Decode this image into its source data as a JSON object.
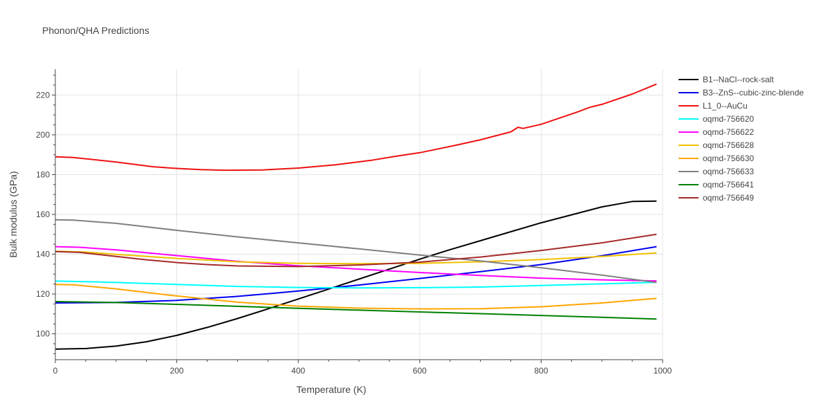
{
  "title": "Phonon/QHA Predictions",
  "chart_data": {
    "type": "line",
    "title": "Phonon/QHA Predictions",
    "xlabel": "Temperature (K)",
    "ylabel": "Bulk modulus (GPa)",
    "xlim": [
      0,
      1000
    ],
    "ylim": [
      87,
      233
    ],
    "x_ticks": [
      0,
      200,
      400,
      600,
      800,
      1000
    ],
    "y_ticks": [
      100,
      120,
      140,
      160,
      180,
      200,
      220
    ],
    "grid": true,
    "legend": "right",
    "series": [
      {
        "name": "B1--NaCl--rock-salt",
        "color": "#000000",
        "x": [
          0,
          50,
          100,
          150,
          200,
          250,
          300,
          350,
          400,
          450,
          500,
          550,
          600,
          650,
          700,
          750,
          800,
          850,
          900,
          950,
          990
        ],
        "y": [
          92.3,
          92.6,
          93.8,
          96.0,
          99.2,
          103.2,
          107.7,
          112.5,
          117.5,
          122.5,
          127.5,
          132.5,
          137.5,
          142.3,
          146.8,
          151.3,
          155.8,
          159.8,
          163.8,
          166.5,
          166.7
        ]
      },
      {
        "name": "B3--ZnS--cubic-zinc-blende",
        "color": "#0000ee",
        "x": [
          0,
          100,
          200,
          300,
          400,
          500,
          600,
          700,
          800,
          900,
          990
        ],
        "y": [
          115.5,
          115.8,
          116.8,
          118.8,
          121.5,
          124.5,
          127.8,
          131.2,
          134.8,
          139.2,
          143.8
        ]
      },
      {
        "name": "L1_0--AuCu",
        "color": "#ee1111",
        "x": [
          0,
          30,
          100,
          160,
          200,
          240,
          280,
          340,
          400,
          460,
          520,
          560,
          600,
          660,
          700,
          750,
          762,
          770,
          800,
          860,
          880,
          900,
          950,
          990
        ],
        "y": [
          189.0,
          188.6,
          186.3,
          184.0,
          183.1,
          182.5,
          182.2,
          182.3,
          183.3,
          184.9,
          187.2,
          189.2,
          191.0,
          194.8,
          197.5,
          201.5,
          203.8,
          203.2,
          205.3,
          211.5,
          213.8,
          215.3,
          220.5,
          225.5
        ]
      },
      {
        "name": "oqmd-756620",
        "color": "#00ffff",
        "x": [
          0,
          50,
          100,
          200,
          300,
          400,
          500,
          600,
          700,
          800,
          900,
          990
        ],
        "y": [
          126.5,
          126.2,
          125.8,
          124.8,
          123.8,
          123.3,
          123.1,
          123.2,
          123.5,
          124.3,
          125.1,
          125.9
        ]
      },
      {
        "name": "oqmd-756622",
        "color": "#ff00ff",
        "x": [
          0,
          40,
          100,
          200,
          300,
          400,
          500,
          600,
          700,
          800,
          900,
          990
        ],
        "y": [
          143.8,
          143.5,
          142.2,
          139.3,
          136.4,
          134.2,
          132.5,
          130.8,
          129.3,
          128.0,
          127.1,
          126.6
        ]
      },
      {
        "name": "oqmd-756628",
        "color": "#f0c000",
        "x": [
          0,
          50,
          100,
          200,
          300,
          400,
          500,
          600,
          700,
          800,
          900,
          990
        ],
        "y": [
          141.5,
          141.1,
          139.9,
          137.9,
          136.2,
          135.4,
          135.2,
          135.4,
          136.2,
          137.3,
          138.9,
          140.6
        ]
      },
      {
        "name": "oqmd-756630",
        "color": "#ffa500",
        "x": [
          0,
          30,
          100,
          200,
          300,
          400,
          500,
          600,
          700,
          800,
          900,
          990
        ],
        "y": [
          124.8,
          124.6,
          122.6,
          119.0,
          115.9,
          113.9,
          112.9,
          112.5,
          112.6,
          113.6,
          115.5,
          117.8
        ]
      },
      {
        "name": "oqmd-756633",
        "color": "#808080",
        "x": [
          0,
          30,
          100,
          200,
          300,
          400,
          500,
          600,
          700,
          800,
          900,
          990
        ],
        "y": [
          157.3,
          157.1,
          155.5,
          152.0,
          148.7,
          145.7,
          142.7,
          139.6,
          136.6,
          133.2,
          129.5,
          125.8
        ]
      },
      {
        "name": "oqmd-756641",
        "color": "#008000",
        "x": [
          0,
          100,
          200,
          300,
          400,
          500,
          600,
          700,
          800,
          900,
          990
        ],
        "y": [
          116.2,
          115.7,
          114.8,
          113.8,
          112.8,
          111.9,
          111.0,
          110.1,
          109.2,
          108.3,
          107.4
        ]
      },
      {
        "name": "oqmd-756649",
        "color": "#a52a2a",
        "x": [
          0,
          40,
          100,
          150,
          200,
          250,
          300,
          400,
          500,
          600,
          700,
          800,
          900,
          990
        ],
        "y": [
          141.3,
          140.9,
          138.9,
          137.2,
          135.8,
          134.8,
          134.1,
          133.8,
          134.6,
          136.0,
          138.6,
          141.9,
          145.7,
          150.0
        ]
      }
    ]
  }
}
